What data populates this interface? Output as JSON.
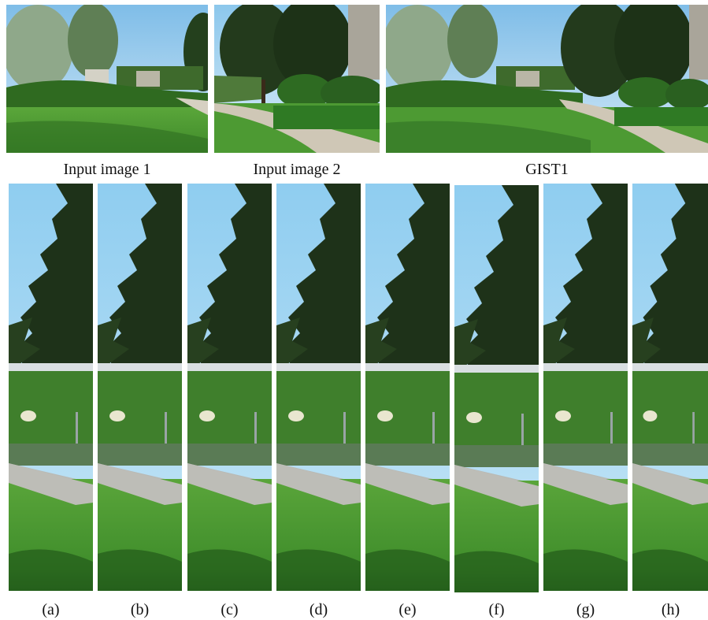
{
  "captions": {
    "input1": "Input image 1",
    "input2": "Input image 2",
    "gist1": "GIST1"
  },
  "strip_labels": [
    "(a)",
    "(b)",
    "(c)",
    "(d)",
    "(e)",
    "(f)",
    "(g)",
    "(h)"
  ],
  "colors": {
    "sky": "#9fd0ee",
    "tree_dark": "#1f3018",
    "hedge": "#3c7a2a",
    "grass": "#4d9a33",
    "path": "#c9c2b2",
    "background": "#ffffff"
  }
}
